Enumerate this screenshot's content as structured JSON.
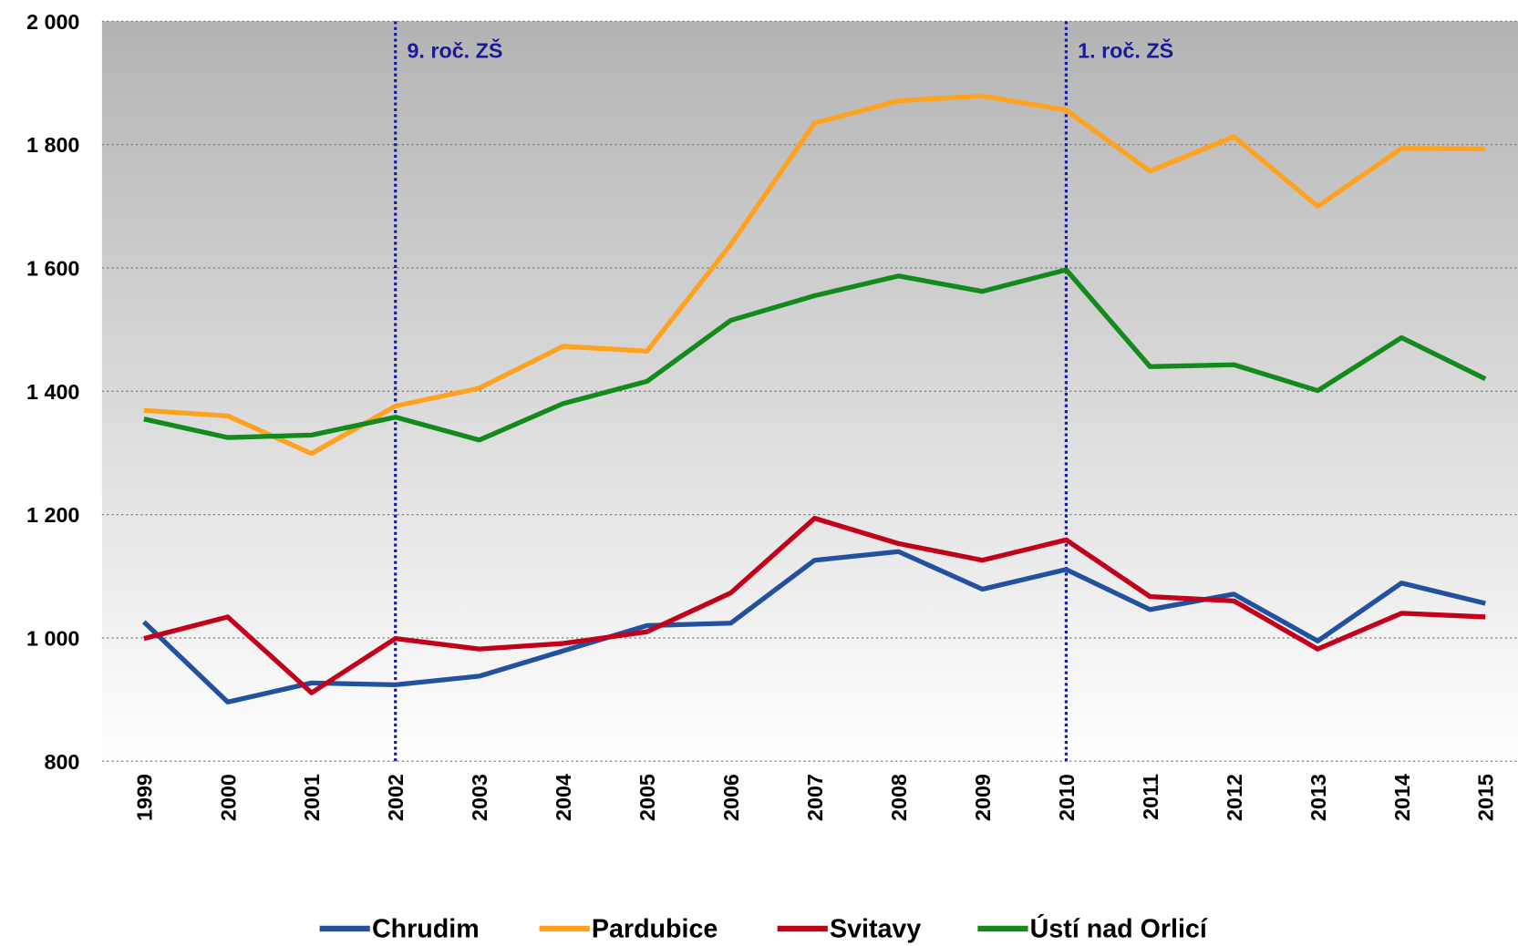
{
  "chart_data": {
    "type": "line",
    "categories": [
      "1999",
      "2000",
      "2001",
      "2002",
      "2003",
      "2004",
      "2005",
      "2006",
      "2007",
      "2008",
      "2009",
      "2010",
      "2011",
      "2012",
      "2013",
      "2014",
      "2015"
    ],
    "series": [
      {
        "name": "Chrudim",
        "color": "#2251a0",
        "values": [
          1026,
          896,
          927,
          924,
          938,
          979,
          1020,
          1024,
          1126,
          1140,
          1079,
          1111,
          1046,
          1071,
          995,
          1089,
          1056
        ]
      },
      {
        "name": "Pardubice",
        "color": "#ffa21f",
        "values": [
          1369,
          1360,
          1299,
          1376,
          1405,
          1473,
          1465,
          1638,
          1835,
          1871,
          1879,
          1856,
          1757,
          1813,
          1700,
          1794,
          1793
        ]
      },
      {
        "name": "Svitavy",
        "color": "#c2001a",
        "values": [
          999,
          1034,
          911,
          999,
          982,
          991,
          1010,
          1073,
          1194,
          1153,
          1126,
          1159,
          1067,
          1060,
          982,
          1040,
          1034
        ]
      },
      {
        "name": "Ústí nad Orlicí",
        "color": "#128a1c",
        "values": [
          1355,
          1325,
          1329,
          1358,
          1321,
          1380,
          1416,
          1515,
          1555,
          1587,
          1562,
          1597,
          1440,
          1443,
          1401,
          1487,
          1420
        ]
      }
    ],
    "ylim": [
      800,
      2000
    ],
    "yticks": [
      800,
      {
        "value": 1000,
        "label": "1 000"
      },
      {
        "value": 1200,
        "label": "1 200"
      },
      {
        "value": 1400,
        "label": "1 400"
      },
      {
        "value": 1600,
        "label": "1 600"
      },
      {
        "value": 1800,
        "label": "1 800"
      },
      {
        "value": 2000,
        "label": "2 000"
      }
    ],
    "grid": true,
    "annotations": [
      {
        "x": "2002",
        "text": "9. roč. ZŠ",
        "color": "#1a1a9a"
      },
      {
        "x": "2010",
        "text": "1. roč. ZŠ",
        "color": "#1a1a9a"
      }
    ],
    "legend": "bottom"
  }
}
